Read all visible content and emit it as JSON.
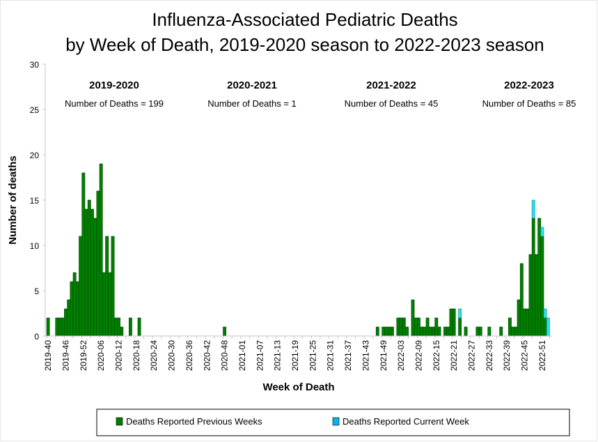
{
  "chart_data": {
    "type": "bar",
    "stacked": true,
    "title_lines": [
      "Influenza-Associated Pediatric Deaths",
      "by Week of Death, 2019-2020 season to 2022-2023 season"
    ],
    "xlabel": "Week of Death",
    "ylabel": "Number of deaths",
    "ylim": [
      0,
      30
    ],
    "yticks": [
      0,
      5,
      10,
      15,
      20,
      25,
      30
    ],
    "x_start_week": "2019-40",
    "x_tick_every": 6,
    "x_tick_labels": [
      "2019-40",
      "2019-46",
      "2019-52",
      "2020-06",
      "2020-12",
      "2020-18",
      "2020-24",
      "2020-30",
      "2020-36",
      "2020-42",
      "2020-48",
      "2021-01",
      "2021-07",
      "2021-13",
      "2021-19",
      "2021-25",
      "2021-31",
      "2021-37",
      "2021-43",
      "2021-49",
      "2022-03",
      "2022-09",
      "2022-15",
      "2022-21",
      "2022-27",
      "2022-33",
      "2022-39",
      "2022-45",
      "2022-51"
    ],
    "series": [
      {
        "name": "Deaths Reported Previous Weeks",
        "color": "#008000",
        "values": [
          2,
          0,
          0,
          2,
          2,
          2,
          3,
          4,
          6,
          7,
          6,
          11,
          18,
          14,
          15,
          14,
          13,
          16,
          19,
          7,
          11,
          7,
          11,
          2,
          2,
          1,
          0,
          0,
          2,
          0,
          0,
          2,
          0,
          0,
          0,
          0,
          0,
          0,
          0,
          0,
          0,
          0,
          0,
          0,
          0,
          0,
          0,
          0,
          0,
          0,
          0,
          0,
          0,
          0,
          0,
          0,
          0,
          0,
          0,
          0,
          1,
          0,
          0,
          0,
          0,
          0,
          0,
          0,
          0,
          0,
          0,
          0,
          0,
          0,
          0,
          0,
          0,
          0,
          0,
          0,
          0,
          0,
          0,
          0,
          0,
          0,
          0,
          0,
          0,
          0,
          0,
          0,
          0,
          0,
          0,
          0,
          0,
          0,
          0,
          0,
          0,
          0,
          0,
          0,
          0,
          0,
          0,
          0,
          0,
          0,
          0,
          0,
          1,
          0,
          1,
          1,
          1,
          1,
          0,
          2,
          2,
          2,
          1,
          0,
          4,
          2,
          2,
          1,
          1,
          2,
          1,
          1,
          2,
          1,
          0,
          1,
          1,
          3,
          3,
          0,
          2,
          0,
          1,
          0,
          0,
          0,
          1,
          1,
          0,
          0,
          1,
          0,
          0,
          0,
          1,
          0,
          0,
          2,
          1,
          1,
          4,
          8,
          3,
          3,
          9,
          13,
          9,
          13,
          11,
          2,
          0
        ]
      },
      {
        "name": "Deaths Reported Current Week",
        "color": "#1ee6f0",
        "values": [
          0,
          0,
          0,
          0,
          0,
          0,
          0,
          0,
          0,
          0,
          0,
          0,
          0,
          0,
          0,
          0,
          0,
          0,
          0,
          0,
          0,
          0,
          0,
          0,
          0,
          0,
          0,
          0,
          0,
          0,
          0,
          0,
          0,
          0,
          0,
          0,
          0,
          0,
          0,
          0,
          0,
          0,
          0,
          0,
          0,
          0,
          0,
          0,
          0,
          0,
          0,
          0,
          0,
          0,
          0,
          0,
          0,
          0,
          0,
          0,
          0,
          0,
          0,
          0,
          0,
          0,
          0,
          0,
          0,
          0,
          0,
          0,
          0,
          0,
          0,
          0,
          0,
          0,
          0,
          0,
          0,
          0,
          0,
          0,
          0,
          0,
          0,
          0,
          0,
          0,
          0,
          0,
          0,
          0,
          0,
          0,
          0,
          0,
          0,
          0,
          0,
          0,
          0,
          0,
          0,
          0,
          0,
          0,
          0,
          0,
          0,
          0,
          0,
          0,
          0,
          0,
          0,
          0,
          0,
          0,
          0,
          0,
          0,
          0,
          0,
          0,
          0,
          0,
          0,
          0,
          0,
          0,
          0,
          0,
          0,
          0,
          0,
          0,
          0,
          0,
          1,
          0,
          0,
          0,
          0,
          0,
          0,
          0,
          0,
          0,
          0,
          0,
          0,
          0,
          0,
          0,
          0,
          0,
          0,
          0,
          0,
          0,
          0,
          0,
          0,
          2,
          0,
          0,
          1,
          1,
          2
        ]
      }
    ],
    "seasons": [
      {
        "label": "2019-2020",
        "deaths_text": "Number of Deaths = 199"
      },
      {
        "label": "2020-2021",
        "deaths_text": "Number of Deaths = 1"
      },
      {
        "label": "2021-2022",
        "deaths_text": "Number of Deaths = 45"
      },
      {
        "label": "2022-2023",
        "deaths_text": "Number of Deaths = 85"
      }
    ],
    "legend": {
      "placement": "bottom",
      "entries": [
        "Deaths Reported Previous Weeks",
        "Deaths Reported Current Week"
      ],
      "legend_swatch_colors": [
        "#008000",
        "#00b4f0"
      ]
    },
    "grid": false
  }
}
